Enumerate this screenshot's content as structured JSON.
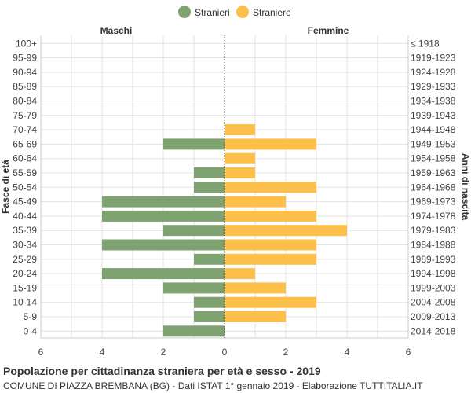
{
  "chart_data": {
    "type": "bar",
    "title": "Popolazione per cittadinanza straniera per età e sesso - 2019",
    "subtitle": "COMUNE DI PIAZZA BREMBANA (BG) - Dati ISTAT 1° gennaio 2019 - Elaborazione TUTTITALIA.IT",
    "left_header": "Maschi",
    "right_header": "Femmine",
    "ylabel_left": "Fasce di età",
    "ylabel_right": "Anni di nascita",
    "xlim": [
      -6,
      6
    ],
    "x_ticks": [
      -6,
      -4,
      -2,
      0,
      2,
      4,
      6
    ],
    "x_tick_labels": [
      "6",
      "4",
      "2",
      "0",
      "2",
      "4",
      "6"
    ],
    "categories": [
      "100+",
      "95-99",
      "90-94",
      "85-89",
      "80-84",
      "75-79",
      "70-74",
      "65-69",
      "60-64",
      "55-59",
      "50-54",
      "45-49",
      "40-44",
      "35-39",
      "30-34",
      "25-29",
      "20-24",
      "15-19",
      "10-14",
      "5-9",
      "0-4"
    ],
    "birth_years": [
      "≤ 1918",
      "1919-1923",
      "1924-1928",
      "1929-1933",
      "1934-1938",
      "1939-1943",
      "1944-1948",
      "1949-1953",
      "1954-1958",
      "1959-1963",
      "1964-1968",
      "1969-1973",
      "1974-1978",
      "1979-1983",
      "1984-1988",
      "1989-1993",
      "1994-1998",
      "1999-2003",
      "2004-2008",
      "2009-2013",
      "2014-2018"
    ],
    "series": [
      {
        "name": "Stranieri",
        "color": "#7fa370",
        "values": [
          0,
          0,
          0,
          0,
          0,
          0,
          0,
          2,
          0,
          1,
          1,
          4,
          4,
          2,
          4,
          1,
          4,
          2,
          1,
          1,
          2
        ]
      },
      {
        "name": "Straniere",
        "color": "#fbbf4a",
        "values": [
          0,
          0,
          0,
          0,
          0,
          0,
          1,
          3,
          1,
          1,
          3,
          2,
          3,
          4,
          3,
          3,
          1,
          2,
          3,
          2,
          0
        ]
      }
    ]
  }
}
